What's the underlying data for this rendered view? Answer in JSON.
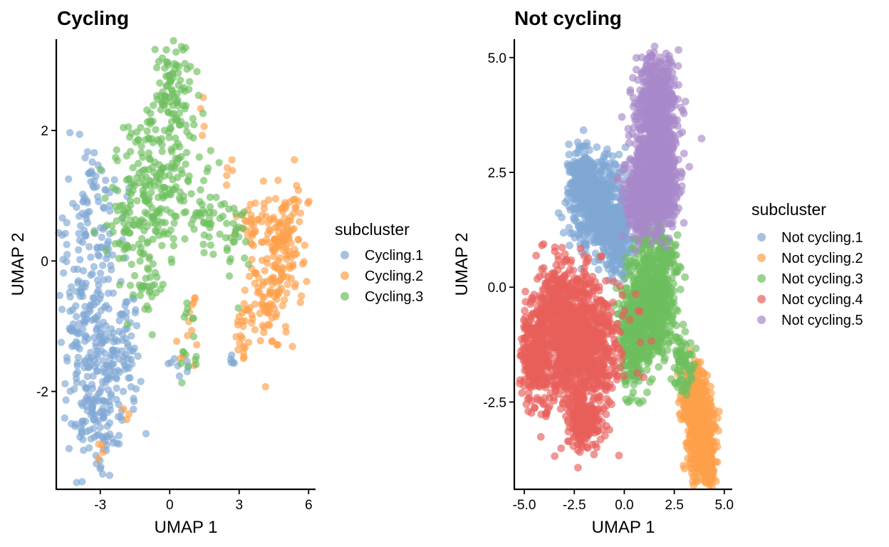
{
  "chart_data": [
    {
      "type": "scatter",
      "title": "Cycling",
      "xlabel": "UMAP 1",
      "ylabel": "UMAP 2",
      "xlim": [
        -4.9,
        6.3
      ],
      "ylim": [
        -3.5,
        3.4
      ],
      "xticks": [
        -3,
        0,
        3,
        6
      ],
      "xtick_labels": [
        "-3",
        "0",
        "3",
        "6"
      ],
      "yticks": [
        -2,
        0,
        2
      ],
      "ytick_labels": [
        "-2",
        "0",
        "2"
      ],
      "grid": false,
      "legend": {
        "title": "subcluster",
        "placement": "right",
        "entries": [
          "Cycling.1",
          "Cycling.2",
          "Cycling.3"
        ]
      },
      "series": [
        {
          "name": "Cycling.1",
          "color": "#7fa7d4",
          "clusters": [
            {
              "cx": -3.3,
              "cy": -0.8,
              "sx": 0.8,
              "sy": 1.0,
              "n": 260
            },
            {
              "cx": -3.1,
              "cy": -2.4,
              "sx": 0.5,
              "sy": 0.4,
              "n": 90
            },
            {
              "cx": -2.0,
              "cy": -1.5,
              "sx": 0.5,
              "sy": 0.5,
              "n": 60
            },
            {
              "cx": -3.3,
              "cy": 0.9,
              "sx": 0.4,
              "sy": 0.4,
              "n": 30
            },
            {
              "cx": 0.4,
              "cy": -1.6,
              "sx": 0.3,
              "sy": 0.1,
              "n": 8
            },
            {
              "cx": 2.7,
              "cy": -1.55,
              "sx": 0.05,
              "sy": 0.05,
              "n": 5
            }
          ]
        },
        {
          "name": "Cycling.2",
          "color": "#fd9f4a",
          "clusters": [
            {
              "cx": 4.9,
              "cy": 0.4,
              "sx": 0.5,
              "sy": 0.4,
              "n": 120
            },
            {
              "cx": 4.3,
              "cy": -0.6,
              "sx": 0.5,
              "sy": 0.5,
              "n": 90
            },
            {
              "cx": 3.3,
              "cy": 0.5,
              "sx": 0.3,
              "sy": 0.2,
              "n": 25
            },
            {
              "cx": 3.2,
              "cy": -1.0,
              "sx": 0.2,
              "sy": 0.3,
              "n": 25
            },
            {
              "cx": 1.0,
              "cy": -0.9,
              "sx": 0.15,
              "sy": 0.3,
              "n": 10
            },
            {
              "cx": 2.5,
              "cy": 1.4,
              "sx": 0.1,
              "sy": 0.1,
              "n": 5
            },
            {
              "cx": -3.0,
              "cy": -2.9,
              "sx": 0.1,
              "sy": 0.15,
              "n": 4
            },
            {
              "cx": -1.9,
              "cy": -2.3,
              "sx": 0.1,
              "sy": 0.1,
              "n": 3
            },
            {
              "cx": 1.4,
              "cy": 2.2,
              "sx": 0.1,
              "sy": 0.2,
              "n": 4
            },
            {
              "cx": 0.5,
              "cy": -1.5,
              "sx": 0.1,
              "sy": 0.1,
              "n": 3
            }
          ]
        },
        {
          "name": "Cycling.3",
          "color": "#6dbf5e",
          "clusters": [
            {
              "cx": -0.6,
              "cy": 1.2,
              "sx": 0.8,
              "sy": 0.6,
              "n": 180
            },
            {
              "cx": 0.2,
              "cy": 2.4,
              "sx": 0.5,
              "sy": 0.45,
              "n": 110
            },
            {
              "cx": -1.9,
              "cy": 0.6,
              "sx": 0.5,
              "sy": 0.4,
              "n": 50
            },
            {
              "cx": 1.6,
              "cy": 0.7,
              "sx": 0.4,
              "sy": 0.3,
              "n": 40
            },
            {
              "cx": 2.8,
              "cy": 0.3,
              "sx": 0.3,
              "sy": 0.3,
              "n": 25
            },
            {
              "cx": -1.0,
              "cy": -0.3,
              "sx": 0.4,
              "sy": 0.3,
              "n": 30
            },
            {
              "cx": 0.9,
              "cy": -1.1,
              "sx": 0.2,
              "sy": 0.4,
              "n": 12
            },
            {
              "cx": 0.5,
              "cy": -1.4,
              "sx": 0.1,
              "sy": 0.1,
              "n": 4
            }
          ]
        }
      ]
    },
    {
      "type": "scatter",
      "title": "Not cycling",
      "xlabel": "UMAP 1",
      "ylabel": "UMAP 2",
      "xlim": [
        -5.5,
        5.4
      ],
      "ylim": [
        -4.4,
        5.4
      ],
      "xticks": [
        -5,
        -2.5,
        0,
        2.5,
        5
      ],
      "xtick_labels": [
        "-5.0",
        "-2.5",
        "0.0",
        "2.5",
        "5.0"
      ],
      "yticks": [
        -2.5,
        0,
        2.5,
        5
      ],
      "ytick_labels": [
        "-2.5",
        "0.0",
        "2.5",
        "5.0"
      ],
      "grid": false,
      "legend": {
        "title": "subcluster",
        "placement": "right",
        "entries": [
          "Not cycling.1",
          "Not cycling.2",
          "Not cycling.3",
          "Not cycling.4",
          "Not cycling.5"
        ]
      },
      "series": [
        {
          "name": "Not cycling.1",
          "color": "#7fa7d4",
          "clusters": [
            {
              "cx": -1.3,
              "cy": 1.8,
              "sx": 0.65,
              "sy": 0.5,
              "n": 500
            },
            {
              "cx": -2.1,
              "cy": 2.4,
              "sx": 0.3,
              "sy": 0.35,
              "n": 200
            },
            {
              "cx": -0.3,
              "cy": 1.0,
              "sx": 0.4,
              "sy": 0.4,
              "n": 200
            }
          ]
        },
        {
          "name": "Not cycling.2",
          "color": "#fd9f4a",
          "clusters": [
            {
              "cx": 3.9,
              "cy": -3.3,
              "sx": 0.3,
              "sy": 0.4,
              "n": 400
            },
            {
              "cx": 3.5,
              "cy": -2.4,
              "sx": 0.3,
              "sy": 0.35,
              "n": 250
            },
            {
              "cx": 4.2,
              "cy": -3.9,
              "sx": 0.15,
              "sy": 0.15,
              "n": 150
            }
          ]
        },
        {
          "name": "Not cycling.3",
          "color": "#6dbf5e",
          "clusters": [
            {
              "cx": 1.3,
              "cy": -0.4,
              "sx": 0.65,
              "sy": 0.6,
              "n": 700
            },
            {
              "cx": 0.3,
              "cy": -1.4,
              "sx": 0.3,
              "sy": 0.5,
              "n": 150
            },
            {
              "cx": 2.9,
              "cy": -1.7,
              "sx": 0.3,
              "sy": 0.3,
              "n": 60
            },
            {
              "cx": 1.7,
              "cy": 0.9,
              "sx": 0.5,
              "sy": 0.3,
              "n": 100
            }
          ]
        },
        {
          "name": "Not cycling.4",
          "color": "#e8605a",
          "clusters": [
            {
              "cx": -2.3,
              "cy": -1.2,
              "sx": 1.0,
              "sy": 0.7,
              "n": 1000
            },
            {
              "cx": -4.4,
              "cy": -1.5,
              "sx": 0.4,
              "sy": 0.5,
              "n": 300
            },
            {
              "cx": -2.0,
              "cy": -2.9,
              "sx": 0.45,
              "sy": 0.3,
              "n": 200
            },
            {
              "cx": -3.3,
              "cy": -0.2,
              "sx": 0.5,
              "sy": 0.4,
              "n": 200
            }
          ]
        },
        {
          "name": "Not cycling.5",
          "color": "#a889c9",
          "clusters": [
            {
              "cx": 1.6,
              "cy": 3.6,
              "sx": 0.5,
              "sy": 0.75,
              "n": 700
            },
            {
              "cx": 1.8,
              "cy": 2.2,
              "sx": 0.5,
              "sy": 0.5,
              "n": 400
            },
            {
              "cx": 0.8,
              "cy": 2.0,
              "sx": 0.4,
              "sy": 0.4,
              "n": 300
            }
          ]
        }
      ]
    }
  ]
}
